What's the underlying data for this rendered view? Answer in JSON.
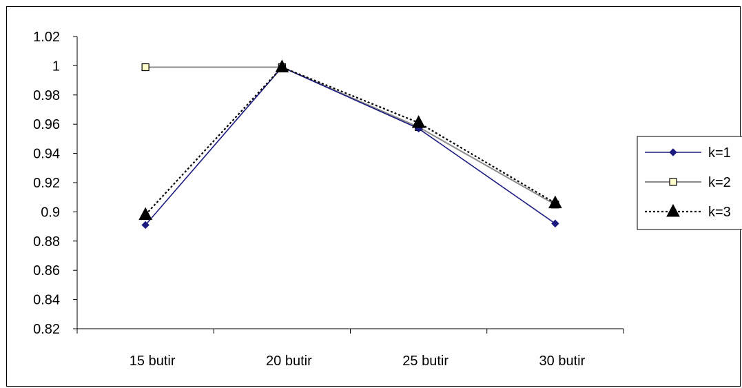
{
  "chart_data": {
    "type": "line",
    "title": "",
    "xlabel": "",
    "ylabel": "",
    "categories": [
      "15 butir",
      "20 butir",
      "25 butir",
      "30 butir"
    ],
    "ylim": [
      0.82,
      1.02
    ],
    "yticks": [
      0.82,
      0.84,
      0.86,
      0.88,
      0.9,
      0.92,
      0.94,
      0.96,
      0.98,
      1,
      1.02
    ],
    "ytick_labels": [
      "0.82",
      "0.84",
      "0.86",
      "0.88",
      "0.9",
      "0.92",
      "0.94",
      "0.96",
      "0.98",
      "1",
      "1.02"
    ],
    "grid": false,
    "legend_position": "right",
    "series": [
      {
        "name": "k=1",
        "values": [
          0.891,
          0.999,
          0.957,
          0.892
        ],
        "color": "#1a1a80",
        "marker": "diamond",
        "dash": "solid"
      },
      {
        "name": "k=2",
        "values": [
          0.999,
          0.999,
          0.958,
          0.905
        ],
        "color": "#8c8c8c",
        "marker": "square",
        "dash": "solid"
      },
      {
        "name": "k=3",
        "values": [
          0.898,
          0.999,
          0.961,
          0.906
        ],
        "color": "#000000",
        "marker": "triangle",
        "dash": "dotted"
      }
    ]
  }
}
